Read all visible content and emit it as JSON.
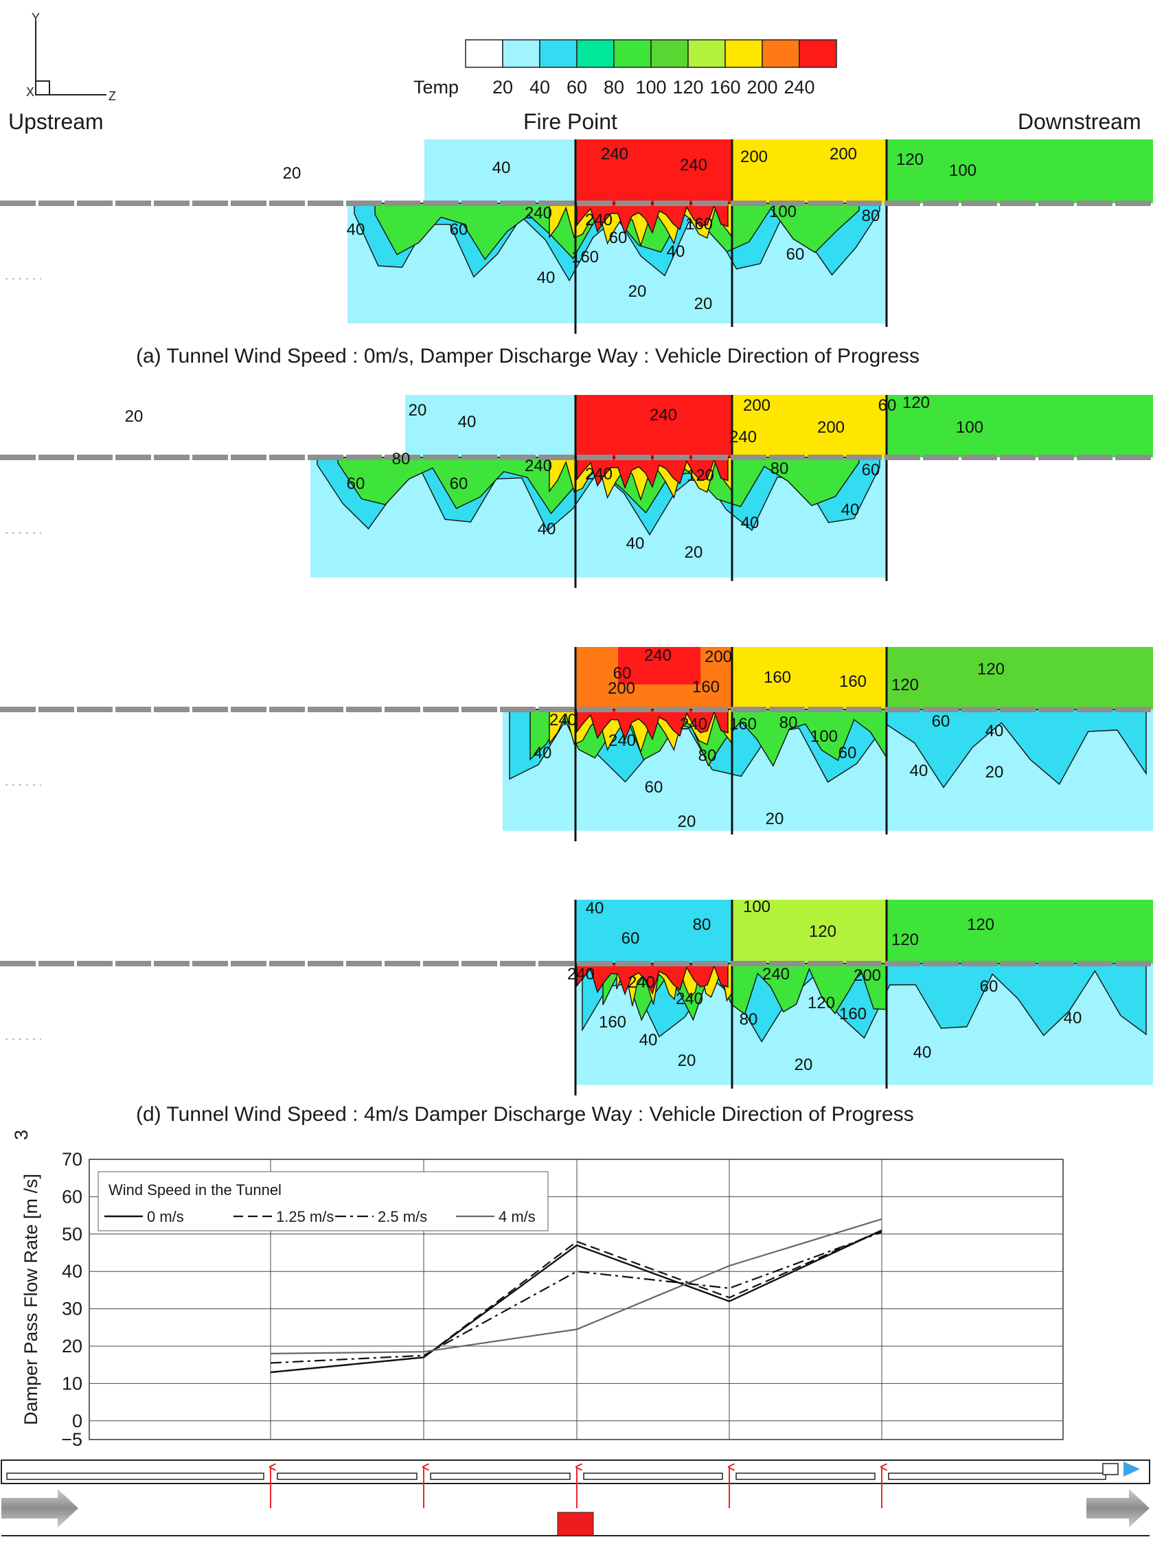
{
  "axes_glyph": {
    "y": "Y",
    "x": "X",
    "z": "Z"
  },
  "colorbar": {
    "label": "Temp",
    "ticks": [
      "20",
      "40",
      "60",
      "80",
      "100",
      "120",
      "160",
      "200",
      "240"
    ],
    "colors": [
      "#ffffff",
      "#9ff4ff",
      "#33dcf0",
      "#00e69a",
      "#3ee43a",
      "#5ad633",
      "#b3f23a",
      "#ffe600",
      "#ff7a14",
      "#ff1a1a"
    ]
  },
  "headers": {
    "upstream": "Upstream",
    "fire_point": "Fire Point",
    "downstream": "Downstream"
  },
  "panels": [
    {
      "caption": "(a) Tunnel Wind Speed : 0m/s, Damper Discharge Way : Vehicle Direction of Progress",
      "upper_labels": [
        "20",
        "40",
        "240",
        "240",
        "200",
        "200",
        "120",
        "100"
      ],
      "lower_labels": [
        "40",
        "60",
        "240",
        "240",
        "160",
        "100",
        "80",
        "160",
        "60",
        "60",
        "40",
        "40",
        "20",
        "20"
      ]
    },
    {
      "caption": "",
      "upper_labels": [
        "20",
        "20",
        "40",
        "240",
        "200",
        "200",
        "240",
        "60",
        "120",
        "100"
      ],
      "lower_labels": [
        "80",
        "60",
        "60",
        "240",
        "240",
        "120",
        "80",
        "60",
        "40",
        "40",
        "40",
        "40",
        "20"
      ]
    },
    {
      "caption": "",
      "upper_labels": [
        "240",
        "200",
        "60",
        "200",
        "160",
        "160",
        "160",
        "120",
        "120"
      ],
      "lower_labels": [
        "240",
        "240",
        "240",
        "160",
        "100",
        "80",
        "60",
        "40",
        "40",
        "80",
        "60",
        "60",
        "40",
        "20",
        "20",
        "20"
      ]
    },
    {
      "caption": "(d)  Tunnel Wind Speed : 4m/s Damper Discharge Way : Vehicle Direction of Progress",
      "upper_labels": [
        "40",
        "60",
        "80",
        "100",
        "120",
        "120",
        "120"
      ],
      "lower_labels": [
        "240",
        "240",
        "240",
        "240",
        "200",
        "120",
        "160",
        "80",
        "160",
        "40",
        "20",
        "20",
        "40",
        "60",
        "40"
      ]
    }
  ],
  "chart_data": {
    "type": "line",
    "ylabel": "Damper Pass Flow Rate [m /s]",
    "ylabel_sup": "3",
    "ylim": [
      -5,
      70
    ],
    "yticks": [
      70,
      60,
      50,
      40,
      30,
      20,
      10,
      0,
      -5
    ],
    "x": [
      1,
      2,
      3,
      4,
      5
    ],
    "legend_title": "Wind Speed in the Tunnel",
    "grid": true,
    "series": [
      {
        "name": "0 m/s",
        "values": [
          13,
          17,
          47,
          32,
          51
        ]
      },
      {
        "name": "1.25 m/s",
        "values": [
          13,
          17,
          48,
          33,
          51
        ]
      },
      {
        "name": "2.5 m/s",
        "values": [
          15.5,
          17.5,
          40,
          35.5,
          50.5
        ]
      },
      {
        "name": "4 m/s",
        "values": [
          18,
          18.5,
          24.5,
          41.5,
          54
        ]
      }
    ]
  }
}
